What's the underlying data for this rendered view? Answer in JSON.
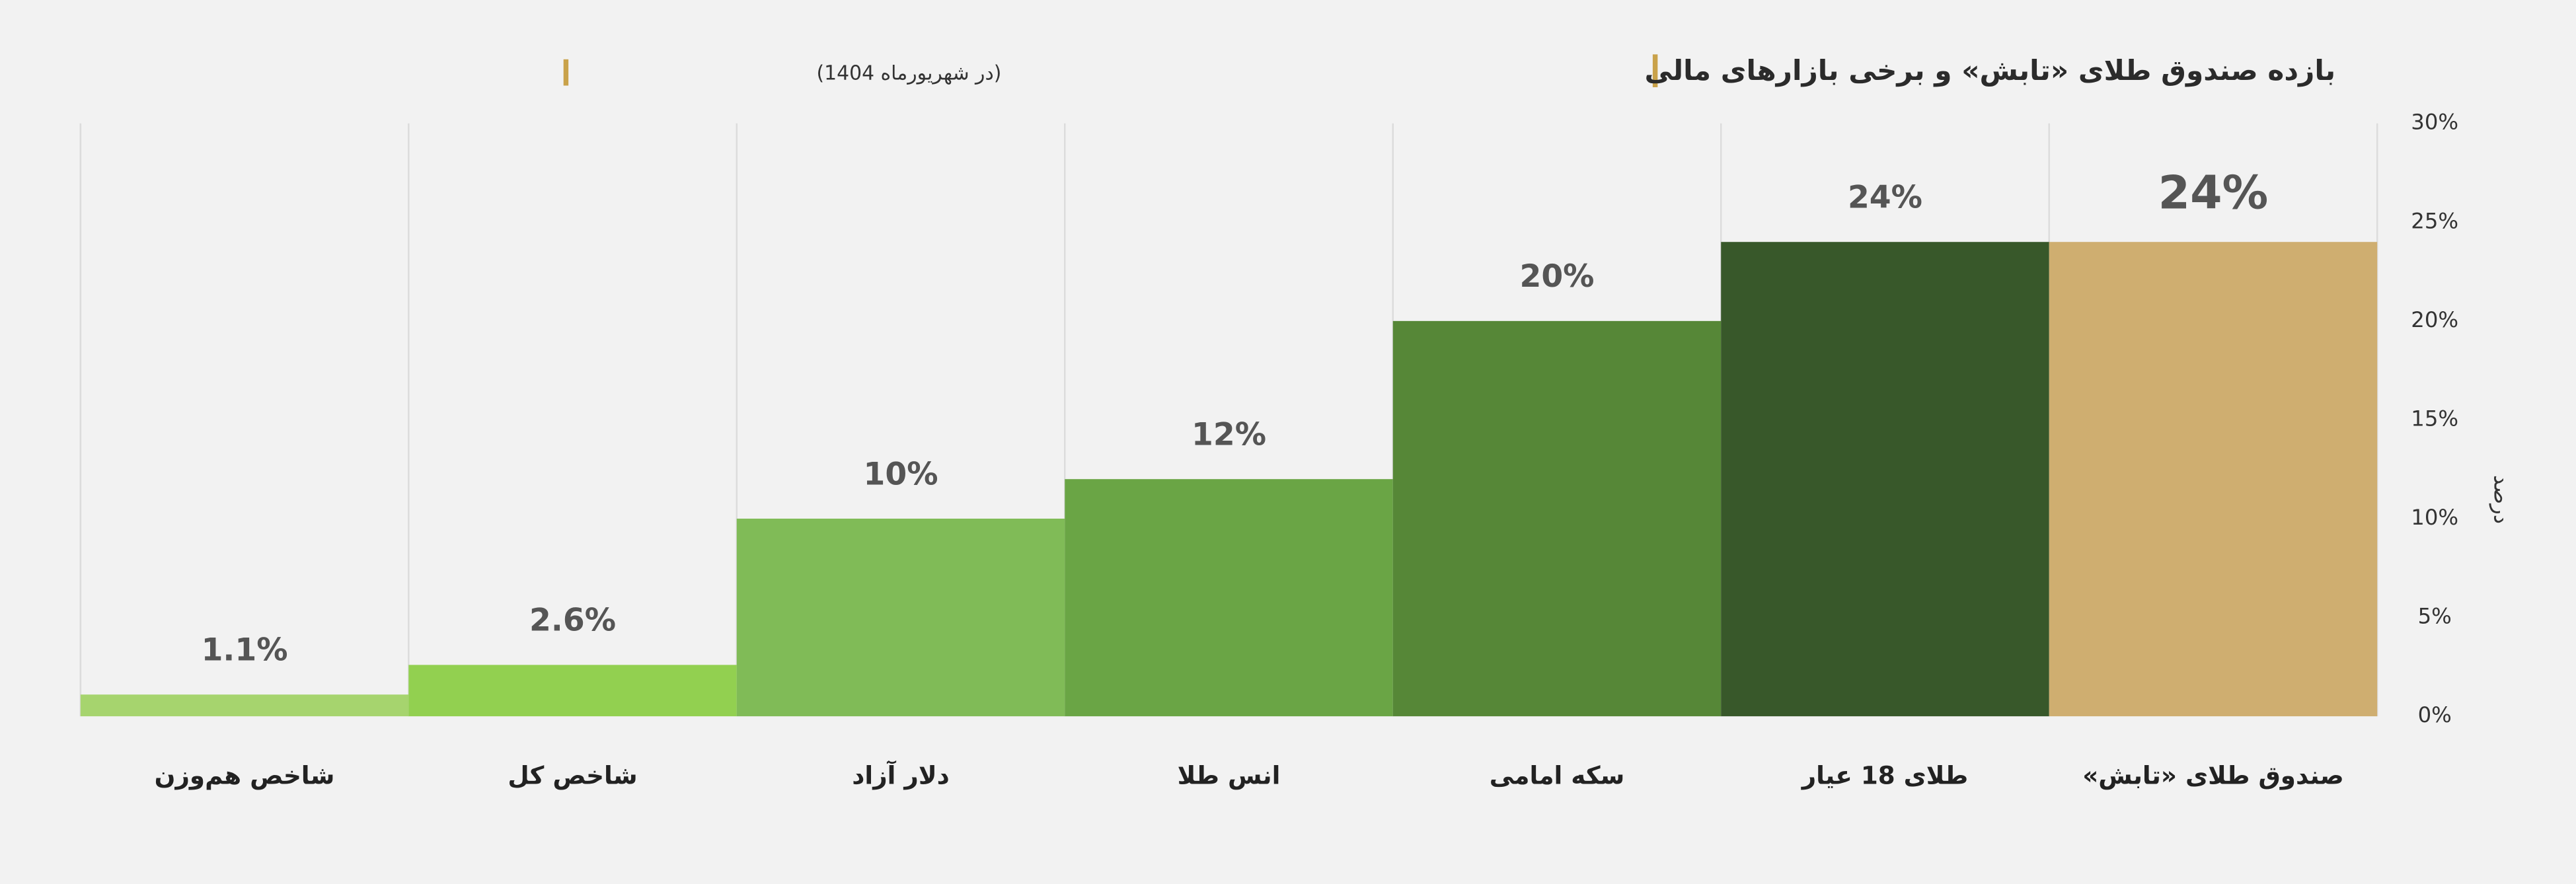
{
  "chart_data": {
    "type": "bar",
    "title": "بازده صندوق طلای «تابش» و برخی بازارهای مالی",
    "subtitle": "(در شهریورماه 1404)",
    "y_label": "درصد",
    "categories": [
      "شاخص هم‌وزن",
      "شاخص کل",
      "دلار آزاد",
      "انس طلا",
      "سکه امامی",
      "طلای 18 عیار",
      "صندوق طلای «تابش»"
    ],
    "values": [
      1.1,
      2.6,
      10,
      12,
      20,
      24,
      24
    ],
    "value_labels": [
      "1.1%",
      "2.6%",
      "10%",
      "12%",
      "20%",
      "24%",
      "24%"
    ],
    "colors": [
      "#a6d46e",
      "#92d050",
      "#80bb57",
      "#6aa545",
      "#568737",
      "#38582a",
      "#cfae70"
    ],
    "ylim": [
      0,
      30
    ],
    "yticks": [
      {
        "value": 0,
        "label": "0%"
      },
      {
        "value": 5,
        "label": "5%"
      },
      {
        "value": 10,
        "label": "10%"
      },
      {
        "value": 15,
        "label": "15%"
      },
      {
        "value": 20,
        "label": "20%"
      },
      {
        "value": 25,
        "label": "25%"
      },
      {
        "value": 30,
        "label": "30%"
      }
    ],
    "y_axis_side": "right",
    "grid": true
  }
}
